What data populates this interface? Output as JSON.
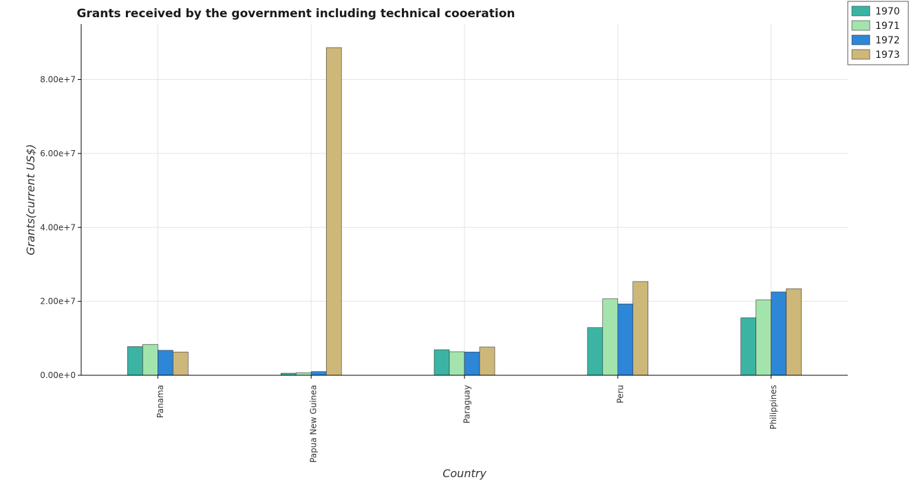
{
  "chart_data": {
    "type": "bar",
    "title": "Grants received by the government including technical cooeration",
    "xlabel": "Country",
    "ylabel": "Grants(current US$)",
    "categories": [
      "Panama",
      "Papua New Guinea",
      "Paraguay",
      "Peru",
      "Philippines"
    ],
    "series": [
      {
        "name": "1970",
        "color": "#3cb4a4",
        "values": [
          7750000,
          550000,
          6900000,
          12900000,
          15550000
        ]
      },
      {
        "name": "1971",
        "color": "#a3e4ac",
        "values": [
          8350000,
          700000,
          6350000,
          20700000,
          20400000
        ]
      },
      {
        "name": "1972",
        "color": "#2e86d6",
        "values": [
          6750000,
          1000000,
          6300000,
          19300000,
          22550000
        ]
      },
      {
        "name": "1973",
        "color": "#cdb87a",
        "values": [
          6300000,
          88650000,
          7650000,
          25350000,
          23400000
        ]
      }
    ],
    "ylim": [
      0,
      95000000
    ],
    "yticks": [
      0,
      20000000,
      40000000,
      60000000,
      80000000
    ],
    "ytick_labels": [
      "0.00e+0",
      "2.00e+7",
      "4.00e+7",
      "6.00e+7",
      "8.00e+7"
    ],
    "grid": true,
    "legend": "top-right"
  }
}
